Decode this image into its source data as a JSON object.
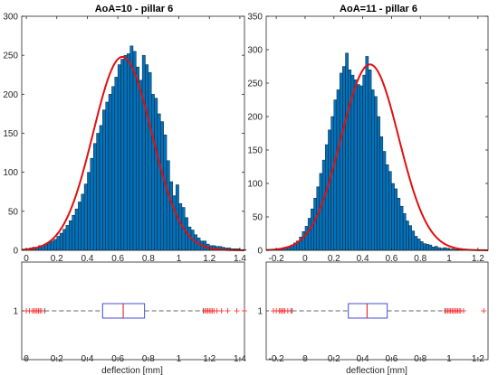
{
  "colors": {
    "bar_fill": "#0072bd",
    "bar_edge": "#1a1a1a",
    "fit_line": "#e01010",
    "box": "#4b4bd8",
    "median": "#e01010",
    "outlier": "#ff2020",
    "whisker": "#333333"
  },
  "chart_data": [
    {
      "type": "bar",
      "title": "AoA=10 - pillar 6",
      "xlabel": "",
      "ylabel": "",
      "xlim": [
        -0.03,
        1.43
      ],
      "ylim": [
        0,
        300
      ],
      "xticks": [
        "0",
        "0.2",
        "0.4",
        "0.6",
        "0.8",
        "1",
        "1.2",
        "1.4"
      ],
      "yticks": [
        "0",
        "50",
        "100",
        "150",
        "200",
        "250",
        "300"
      ],
      "bins": {
        "start": 0.02,
        "width": 0.02,
        "values": [
          3,
          4,
          4,
          6,
          6,
          8,
          10,
          12,
          14,
          18,
          22,
          27,
          32,
          38,
          45,
          53,
          62,
          72,
          85,
          100,
          118,
          137,
          150,
          160,
          180,
          190,
          200,
          210,
          222,
          238,
          245,
          250,
          252,
          262,
          255,
          235,
          218,
          250,
          238,
          228,
          200,
          195,
          175,
          165,
          148,
          115,
          88,
          70,
          84,
          60,
          55,
          42,
          30,
          26,
          20,
          16,
          12,
          12,
          8,
          6,
          6,
          5,
          5,
          4,
          3,
          3,
          2,
          2,
          2,
          1,
          1,
          0
        ]
      },
      "fit": {
        "mean": 0.63,
        "sigma": 0.192,
        "peak": 248
      },
      "box": {
        "q1": 0.5,
        "median": 0.635,
        "q3": 0.775,
        "whisker_low": 0.12,
        "whisker_high": 1.16,
        "outliers": [
          0.0,
          0.02,
          0.04,
          0.05,
          0.06,
          0.07,
          0.08,
          0.09,
          0.1,
          1.17,
          1.18,
          1.19,
          1.2,
          1.21,
          1.22,
          1.23,
          1.25,
          1.28,
          1.32,
          1.38,
          1.43
        ]
      },
      "box_xlabel": "deflection [mm]",
      "box_xticks": [
        "0",
        "0.2",
        "0.4",
        "0.6",
        "0.8",
        "1",
        "1.2",
        "1.4"
      ],
      "box_ytick": "1"
    },
    {
      "type": "bar",
      "title": "AoA=11 - pillar 6",
      "xlabel": "",
      "ylabel": "",
      "xlim": [
        -0.27,
        1.27
      ],
      "ylim": [
        0,
        350
      ],
      "xticks": [
        "-0.2",
        "0",
        "0.2",
        "0.4",
        "0.6",
        "0.8",
        "1",
        "1.2"
      ],
      "yticks": [
        "0",
        "50",
        "100",
        "150",
        "200",
        "250",
        "300",
        "350"
      ],
      "bins": {
        "start": -0.2,
        "width": 0.02,
        "values": [
          2,
          3,
          4,
          5,
          6,
          8,
          11,
          14,
          20,
          28,
          36,
          48,
          62,
          78,
          95,
          115,
          135,
          158,
          180,
          200,
          225,
          240,
          265,
          275,
          295,
          270,
          262,
          255,
          248,
          246,
          262,
          290,
          270,
          240,
          230,
          200,
          170,
          148,
          128,
          118,
          100,
          92,
          78,
          66,
          55,
          44,
          37,
          29,
          21,
          17,
          13,
          10,
          9,
          8,
          5,
          6,
          4,
          3,
          4,
          3,
          2,
          2,
          1,
          1,
          1,
          0,
          0,
          0,
          0,
          0,
          0,
          0
        ]
      },
      "fit": {
        "mean": 0.45,
        "sigma": 0.2,
        "peak": 278
      },
      "box": {
        "q1": 0.3,
        "median": 0.43,
        "q3": 0.57,
        "whisker_low": -0.09,
        "whisker_high": 0.97,
        "outliers": [
          -0.22,
          -0.2,
          -0.18,
          -0.17,
          -0.16,
          -0.15,
          -0.14,
          -0.12,
          -0.1,
          0.98,
          0.99,
          1.0,
          1.01,
          1.02,
          1.03,
          1.04,
          1.05,
          1.06,
          1.07,
          1.08,
          1.1,
          1.24
        ]
      },
      "box_xlabel": "deflection [mm]",
      "box_xticks": [
        "-0.2",
        "0",
        "0.2",
        "0.4",
        "0.6",
        "0.8",
        "1",
        "1.2"
      ],
      "box_ytick": "1"
    }
  ]
}
